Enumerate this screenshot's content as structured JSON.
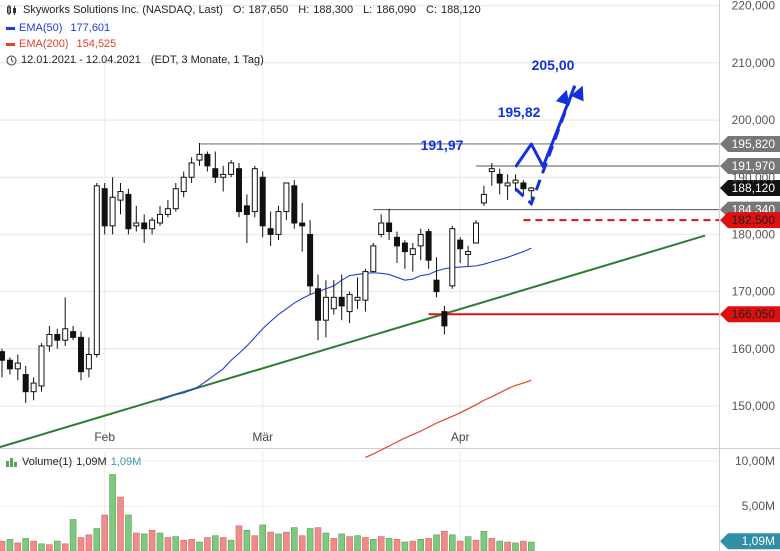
{
  "header": {
    "symbol_line": "Skyworks Solutions Inc. (NASDAQ, Last)",
    "open_label": "O:",
    "open": "187,650",
    "high_label": "H:",
    "high": "188,300",
    "low_label": "L:",
    "low": "186,090",
    "close_label": "C:",
    "close": "188,120",
    "ema50_label": "EMA(50)",
    "ema50": "177,601",
    "ema200_label": "EMA(200)",
    "ema200": "154,525",
    "period": "12.01.2021 - 12.04.2021",
    "period_note": "(EDT, 3 Monate, 1 Tag)"
  },
  "colors": {
    "ema50": "#1f3fd6",
    "ema200": "#e0442c",
    "trend": "#2e7d32",
    "projection": "#1230e0",
    "support": "#e01010",
    "up_volume": "#7fc87f",
    "down_volume": "#ee8c8c",
    "price_tag": "#111111",
    "level_tag": "#777777"
  },
  "chart_data": {
    "type": "candlestick",
    "x_ticks": [
      "Feb",
      "Mär",
      "Apr"
    ],
    "y_ticks": [
      "150,000",
      "160,000",
      "170,000",
      "180,000",
      "190,000",
      "200,000",
      "210,000",
      "220,000"
    ],
    "ylim": [
      143,
      221
    ],
    "candles": [
      [
        159.5,
        160.0,
        155.0,
        158.0
      ],
      [
        158.0,
        158.5,
        155.5,
        156.5
      ],
      [
        156.5,
        159.0,
        154.5,
        157.5
      ],
      [
        155.5,
        157.0,
        150.5,
        152.5
      ],
      [
        152.5,
        155.0,
        151.0,
        154.0
      ],
      [
        153.5,
        161.0,
        152.5,
        160.5
      ],
      [
        160.5,
        164.0,
        159.5,
        162.5
      ],
      [
        162.5,
        163.5,
        160.0,
        161.5
      ],
      [
        161.5,
        169.0,
        160.5,
        163.5
      ],
      [
        163.0,
        164.0,
        161.5,
        162.0
      ],
      [
        162.0,
        163.0,
        154.5,
        156.0
      ],
      [
        156.5,
        162.0,
        155.0,
        159.0
      ],
      [
        159.0,
        189.0,
        158.5,
        188.5
      ],
      [
        188.0,
        189.0,
        180.0,
        181.5
      ],
      [
        181.5,
        190.0,
        180.0,
        186.5
      ],
      [
        186.0,
        189.0,
        183.5,
        187.5
      ],
      [
        187.0,
        188.0,
        180.0,
        181.0
      ],
      [
        181.5,
        185.0,
        180.5,
        182.0
      ],
      [
        182.0,
        183.5,
        178.5,
        181.0
      ],
      [
        181.0,
        183.0,
        180.0,
        182.5
      ],
      [
        182.0,
        185.0,
        181.5,
        183.5
      ],
      [
        183.5,
        186.0,
        183.0,
        184.5
      ],
      [
        184.5,
        189.0,
        184.0,
        188.0
      ],
      [
        187.5,
        191.0,
        186.5,
        190.0
      ],
      [
        190.0,
        193.5,
        189.0,
        192.5
      ],
      [
        193.0,
        196.0,
        192.0,
        194.0
      ],
      [
        194.0,
        194.5,
        191.0,
        192.0
      ],
      [
        191.5,
        194.5,
        189.0,
        190.0
      ],
      [
        190.0,
        192.0,
        187.5,
        190.5
      ],
      [
        190.5,
        193.0,
        190.0,
        192.5
      ],
      [
        191.5,
        192.5,
        183.0,
        184.0
      ],
      [
        185.0,
        187.0,
        178.5,
        183.5
      ],
      [
        184.0,
        192.0,
        183.0,
        191.5
      ],
      [
        190.0,
        191.0,
        179.5,
        181.5
      ],
      [
        181.0,
        184.0,
        178.0,
        180.0
      ],
      [
        180.0,
        185.0,
        179.0,
        184.0
      ],
      [
        184.0,
        189.0,
        182.5,
        189.0
      ],
      [
        188.5,
        189.5,
        181.0,
        182.0
      ],
      [
        182.0,
        185.5,
        177.0,
        181.5
      ],
      [
        180.0,
        182.5,
        169.5,
        171.0
      ],
      [
        170.5,
        173.0,
        161.5,
        165.0
      ],
      [
        165.0,
        172.0,
        162.0,
        169.0
      ],
      [
        167.0,
        172.0,
        166.0,
        169.0
      ],
      [
        169.0,
        173.0,
        165.0,
        167.5
      ],
      [
        166.5,
        170.0,
        164.5,
        169.5
      ],
      [
        168.5,
        172.5,
        167.0,
        169.0
      ],
      [
        168.5,
        174.0,
        166.5,
        173.5
      ],
      [
        173.5,
        178.5,
        173.5,
        178.0
      ],
      [
        180.0,
        183.5,
        179.5,
        182.0
      ],
      [
        182.0,
        184.5,
        179.0,
        180.5
      ],
      [
        179.5,
        180.5,
        175.0,
        178.0
      ],
      [
        178.5,
        179.0,
        174.0,
        177.0
      ],
      [
        176.5,
        178.5,
        173.5,
        177.5
      ],
      [
        178.0,
        181.0,
        175.5,
        180.0
      ],
      [
        180.5,
        181.0,
        174.0,
        175.5
      ],
      [
        172.0,
        176.0,
        169.0,
        170.0
      ],
      [
        166.5,
        167.5,
        162.5,
        164.0
      ],
      [
        171.0,
        181.5,
        170.5,
        181.0
      ],
      [
        179.0,
        179.5,
        175.0,
        177.5
      ],
      [
        176.5,
        178.0,
        174.5,
        177.0
      ],
      [
        178.5,
        182.5,
        178.5,
        182.0
      ],
      [
        185.5,
        188.5,
        185.0,
        187.0
      ],
      [
        191.0,
        192.5,
        188.5,
        191.5
      ],
      [
        190.5,
        191.5,
        187.0,
        189.0
      ],
      [
        188.5,
        190.5,
        186.0,
        189.0
      ],
      [
        189.0,
        190.5,
        187.5,
        189.5
      ],
      [
        189.0,
        189.5,
        187.0,
        188.0
      ],
      [
        187.65,
        188.3,
        186.09,
        188.12
      ]
    ],
    "ema50": [
      151.0,
      151.5,
      152.0,
      152.3,
      152.8,
      153.5,
      154.5,
      155.5,
      156.5,
      158.0,
      159.2,
      160.5,
      162.0,
      163.5,
      164.8,
      166.0,
      167.0,
      168.0,
      168.8,
      169.5,
      170.0,
      170.5,
      171.0,
      172.0,
      172.8,
      173.0,
      173.2,
      173.3,
      173.2,
      173.0,
      172.5,
      172.0,
      172.2,
      172.8,
      173.0,
      173.6,
      174.0,
      174.2,
      174.3,
      174.4,
      174.5,
      174.8,
      175.2,
      175.6,
      176.0,
      176.5,
      177.0,
      177.6
    ],
    "ema200": [
      141.0,
      141.6,
      142.3,
      143.0,
      143.7,
      144.4,
      145.0,
      145.6,
      146.3,
      147.0,
      147.6,
      148.2,
      148.8,
      149.5,
      150.2,
      151.0,
      151.6,
      152.3,
      153.0,
      153.6,
      154.0,
      154.5
    ],
    "volume_ylim": [
      0,
      11
    ],
    "volume_ticks": [
      "10,00M",
      "5,00M"
    ],
    "volume_legend": "Volume(1)",
    "volume_values": [
      "1,09M",
      "1,09M"
    ],
    "volume": [
      [
        1.1,
        0
      ],
      [
        1.3,
        1
      ],
      [
        0.9,
        0
      ],
      [
        1.4,
        1
      ],
      [
        1.1,
        0
      ],
      [
        0.8,
        1
      ],
      [
        0.7,
        0
      ],
      [
        1.1,
        1
      ],
      [
        0.8,
        0
      ],
      [
        3.5,
        1
      ],
      [
        1.5,
        0
      ],
      [
        1.8,
        0
      ],
      [
        2.5,
        1
      ],
      [
        4.0,
        0
      ],
      [
        8.5,
        1
      ],
      [
        6.0,
        0
      ],
      [
        4.0,
        1
      ],
      [
        2.0,
        0
      ],
      [
        1.9,
        1
      ],
      [
        2.3,
        0
      ],
      [
        2.0,
        1
      ],
      [
        1.5,
        0
      ],
      [
        1.6,
        1
      ],
      [
        1.2,
        0
      ],
      [
        1.3,
        0
      ],
      [
        1.0,
        1
      ],
      [
        1.5,
        0
      ],
      [
        1.7,
        1
      ],
      [
        1.5,
        0
      ],
      [
        1.2,
        1
      ],
      [
        2.8,
        0
      ],
      [
        2.3,
        1
      ],
      [
        1.7,
        0
      ],
      [
        2.9,
        1
      ],
      [
        2.1,
        0
      ],
      [
        1.9,
        1
      ],
      [
        2.1,
        0
      ],
      [
        2.6,
        1
      ],
      [
        1.7,
        0
      ],
      [
        2.5,
        1
      ],
      [
        2.6,
        0
      ],
      [
        2.0,
        1
      ],
      [
        1.4,
        0
      ],
      [
        1.9,
        1
      ],
      [
        1.6,
        0
      ],
      [
        1.7,
        1
      ],
      [
        1.5,
        0
      ],
      [
        1.3,
        1
      ],
      [
        1.6,
        0
      ],
      [
        1.4,
        1
      ],
      [
        1.3,
        0
      ],
      [
        1.0,
        1
      ],
      [
        1.1,
        0
      ],
      [
        1.3,
        1
      ],
      [
        1.4,
        0
      ],
      [
        1.8,
        1
      ],
      [
        2.2,
        0
      ],
      [
        1.8,
        1
      ],
      [
        1.1,
        0
      ],
      [
        1.6,
        1
      ],
      [
        1.2,
        0
      ],
      [
        2.2,
        1
      ],
      [
        1.4,
        0
      ],
      [
        1.1,
        1
      ],
      [
        1.0,
        0
      ],
      [
        0.9,
        1
      ],
      [
        1.1,
        0
      ],
      [
        1.0,
        1
      ]
    ],
    "resistance_levels": [
      {
        "label": "195,820",
        "value": 195.82
      },
      {
        "label": "191,970",
        "value": 191.97
      },
      {
        "label": "184,340",
        "value": 184.34
      }
    ],
    "last_price": {
      "label": "188,120",
      "value": 188.12
    },
    "support_levels": [
      {
        "label": "182,500",
        "value": 182.5,
        "style": "dashed"
      },
      {
        "label": "166,050",
        "value": 166.05,
        "style": "solid"
      }
    ],
    "annotations": [
      {
        "text": "205,00",
        "value": 205.0
      },
      {
        "text": "195,82",
        "value": 195.82
      },
      {
        "text": "191,97",
        "value": 191.97
      }
    ],
    "trendline": {
      "from": [
        -1,
        142.5
      ],
      "to": [
        89,
        179.8
      ]
    },
    "projection_solid": [
      [
        195.0,
        191.8
      ],
      [
        197.0,
        195.8
      ],
      [
        198.5,
        191.9
      ],
      [
        202.5,
        206.0
      ]
    ],
    "projection_dashed": [
      [
        195.0,
        188.0
      ],
      [
        197.0,
        185.4
      ],
      [
        202.5,
        206.0
      ]
    ]
  }
}
